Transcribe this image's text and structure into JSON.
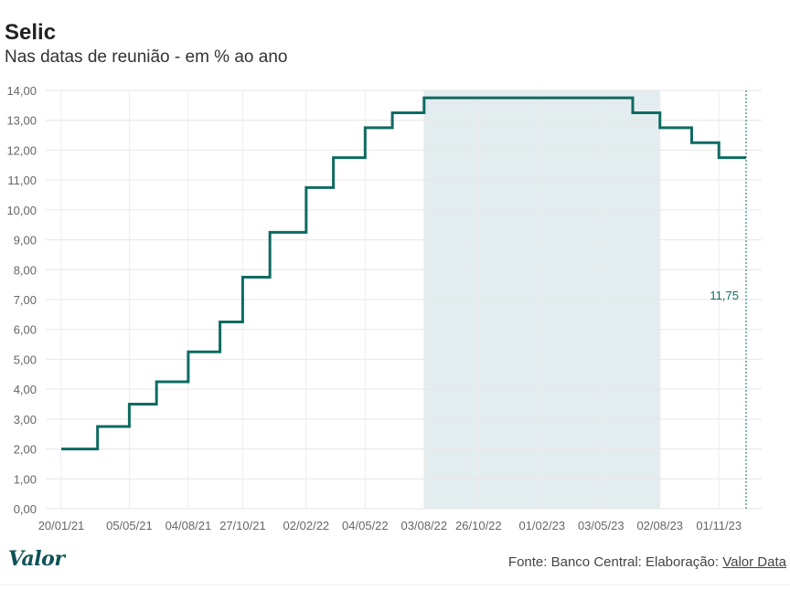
{
  "header": {
    "title": "Selic",
    "subtitle": "Nas datas de reunião - em % ao ano"
  },
  "footer": {
    "logo_text": "Valor",
    "source_prefix": "Fonte: Banco Central: Elaboração: ",
    "source_link": "Valor Data"
  },
  "colors": {
    "line": "#0f6b62",
    "shade": "#e3edef",
    "grid": "#e6e6e6",
    "axis_text": "#666666",
    "annotation": "#0f6b62"
  },
  "chart_data": {
    "type": "line",
    "step": true,
    "title": "Selic",
    "subtitle": "Nas datas de reunião - em % ao ano",
    "xlabel": "",
    "ylabel": "",
    "ylim": [
      0,
      14
    ],
    "yticks": [
      "0,00",
      "1,00",
      "2,00",
      "3,00",
      "4,00",
      "5,00",
      "6,00",
      "7,00",
      "8,00",
      "9,00",
      "10,00",
      "11,00",
      "12,00",
      "13,00",
      "14,00"
    ],
    "xticks": [
      "20/01/21",
      "05/05/21",
      "04/08/21",
      "27/10/21",
      "02/02/22",
      "04/05/22",
      "03/08/22",
      "26/10/22",
      "01/02/23",
      "03/05/23",
      "02/08/23",
      "01/11/23"
    ],
    "x": [
      "17/03/21",
      "05/05/21",
      "16/06/21",
      "04/08/21",
      "22/09/21",
      "27/10/21",
      "08/12/21",
      "02/02/22",
      "16/03/22",
      "04/05/22",
      "15/06/22",
      "03/08/22",
      "21/09/22",
      "26/10/22",
      "07/12/22",
      "01/02/23",
      "22/03/23",
      "03/05/23",
      "21/06/23",
      "02/08/23",
      "20/09/23",
      "01/11/23",
      "13/12/23"
    ],
    "series": [
      {
        "values": [
          2.0,
          2.75,
          3.5,
          4.25,
          5.25,
          6.25,
          7.75,
          9.25,
          10.75,
          11.75,
          12.75,
          13.25,
          13.75,
          13.75,
          13.75,
          13.75,
          13.75,
          13.75,
          13.75,
          13.25,
          12.75,
          12.25,
          11.75
        ]
      }
    ],
    "shaded_range": [
      "03/08/22",
      "02/08/23"
    ],
    "annotation": {
      "label": "11,75",
      "x": "13/12/23",
      "value": 11.75
    },
    "grid": true
  }
}
